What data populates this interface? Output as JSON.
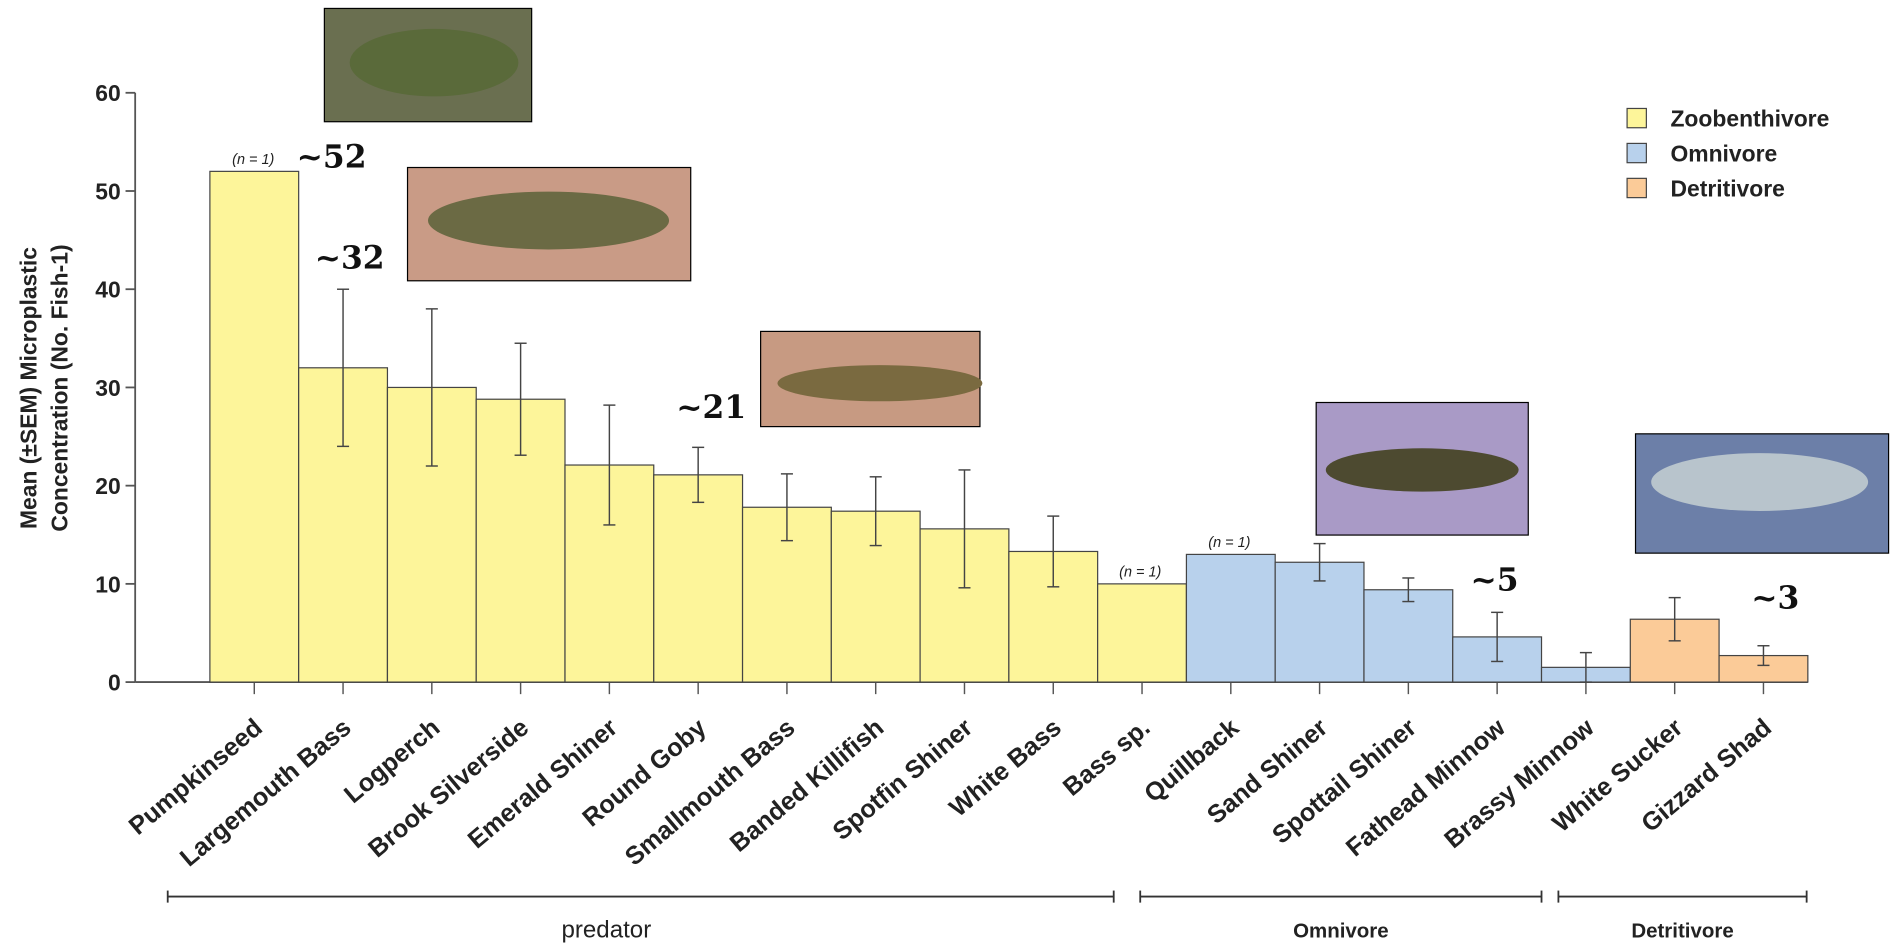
{
  "chart_data": {
    "type": "bar",
    "y_label": [
      "Mean (±SEM) Microplastic",
      "Concentration (No. Fish-1)"
    ],
    "categories": [
      "Pumpkinseed",
      "Largemouth Bass",
      "Logperch",
      "Brook Silverside",
      "Emerald Shiner",
      "Round Goby",
      "Smallmouth Bass",
      "Banded Killifish",
      "Spotfin Shiner",
      "White Bass",
      "Bass sp.",
      "Quillback",
      "Sand Shiner",
      "Spottail Shiner",
      "Fathead Minnow",
      "Brassy Minnow",
      "White Sucker",
      "Gizzard Shad"
    ],
    "series": [
      {
        "name": "Zoobenthivore",
        "color": "#fdf59a",
        "values": [
          52,
          32,
          30,
          28.8,
          22.1,
          21.1,
          17.8,
          17.4,
          15.6,
          13.3,
          10,
          null,
          null,
          null,
          null,
          null,
          null,
          null
        ],
        "errors": [
          null,
          8,
          8,
          5.7,
          6.1,
          2.8,
          3.4,
          3.5,
          6,
          3.6,
          null,
          null,
          null,
          null,
          null,
          null,
          null,
          null
        ]
      },
      {
        "name": "Omnivore",
        "color": "#b8d1ec",
        "values": [
          null,
          null,
          null,
          null,
          null,
          null,
          null,
          null,
          null,
          null,
          null,
          13,
          12.2,
          9.4,
          4.6,
          1.5,
          null,
          null
        ],
        "errors": [
          null,
          null,
          null,
          null,
          null,
          null,
          null,
          null,
          null,
          null,
          null,
          null,
          1.9,
          1.2,
          2.5,
          1.5,
          null,
          null
        ]
      },
      {
        "name": "Detritivore",
        "color": "#fbcb98",
        "values": [
          null,
          null,
          null,
          null,
          null,
          null,
          null,
          null,
          null,
          null,
          null,
          null,
          null,
          null,
          null,
          null,
          6.4,
          2.7
        ],
        "errors": [
          null,
          null,
          null,
          null,
          null,
          null,
          null,
          null,
          null,
          null,
          null,
          null,
          null,
          null,
          null,
          null,
          2.2,
          1
        ]
      }
    ],
    "ylim": [
      0,
      60
    ],
    "yticks": [
      0,
      10,
      20,
      30,
      40,
      50,
      60
    ],
    "n_labels": [
      "(n = 1)",
      "(n = 1)",
      "(n = 1)"
    ],
    "annotations": [
      "~52",
      "~32",
      "~21",
      "~5",
      "~3"
    ],
    "groups": [
      "predator",
      "Omnivore",
      "Detritivore"
    ],
    "legend": "top-right"
  }
}
